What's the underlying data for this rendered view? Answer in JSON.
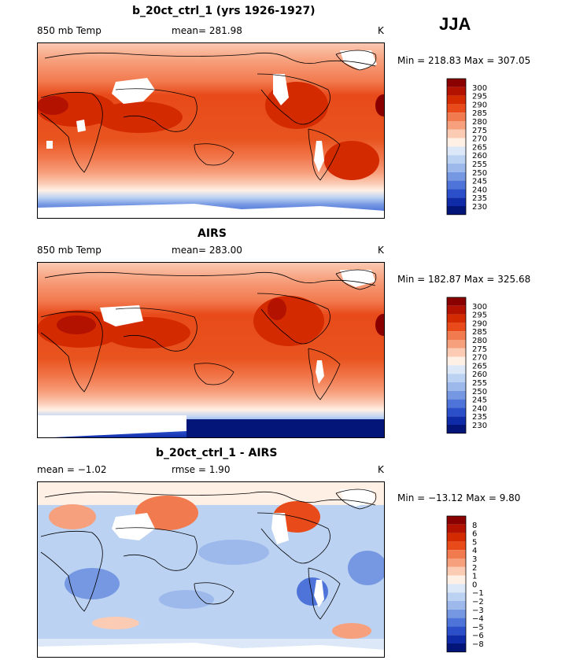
{
  "season": "JJA",
  "panels": [
    {
      "title": "b_20ct_ctrl_1 (yrs 1926-1927)",
      "left_label": "850 mb Temp",
      "center_label": "mean=  281.98",
      "units": "K",
      "min_max": "Min = 218.83 Max = 307.05",
      "colorbar_labels": [
        "300",
        "295",
        "290",
        "285",
        "280",
        "275",
        "270",
        "265",
        "260",
        "255",
        "250",
        "245",
        "240",
        "235",
        "230"
      ]
    },
    {
      "title": "AIRS",
      "left_label": "850 mb Temp",
      "center_label": "mean=  283.00",
      "units": "K",
      "min_max": "Min = 182.87 Max = 325.68",
      "colorbar_labels": [
        "300",
        "295",
        "290",
        "285",
        "280",
        "275",
        "270",
        "265",
        "260",
        "255",
        "250",
        "245",
        "240",
        "235",
        "230"
      ]
    },
    {
      "title": "b_20ct_ctrl_1 - AIRS",
      "left_label": "mean =  −1.02",
      "center_label": "rmse =   1.90",
      "units": "K",
      "min_max": "Min = −13.12 Max =   9.80",
      "colorbar_labels": [
        "8",
        "6",
        "5",
        "4",
        "3",
        "2",
        "1",
        "0",
        "−1",
        "−2",
        "−3",
        "−4",
        "−5",
        "−6",
        "−8"
      ]
    }
  ],
  "colors": {
    "temp_scale": [
      "#8a0000",
      "#b31200",
      "#d42a00",
      "#e84a1a",
      "#f27a4f",
      "#f7a07d",
      "#fbcbb4",
      "#fff0e6",
      "#dce8f8",
      "#bcd2f2",
      "#9db9ec",
      "#7698e3",
      "#4f74d9",
      "#2a4fc9",
      "#0f2ba8",
      "#04157a"
    ],
    "diff_scale": [
      "#8a0000",
      "#b31200",
      "#d42a00",
      "#e84a1a",
      "#f27a4f",
      "#f7a07d",
      "#fbcbb4",
      "#fff0e6",
      "#dce8f8",
      "#bcd2f2",
      "#9db9ec",
      "#7698e3",
      "#4f74d9",
      "#2a4fc9",
      "#0f2ba8",
      "#04157a"
    ]
  }
}
